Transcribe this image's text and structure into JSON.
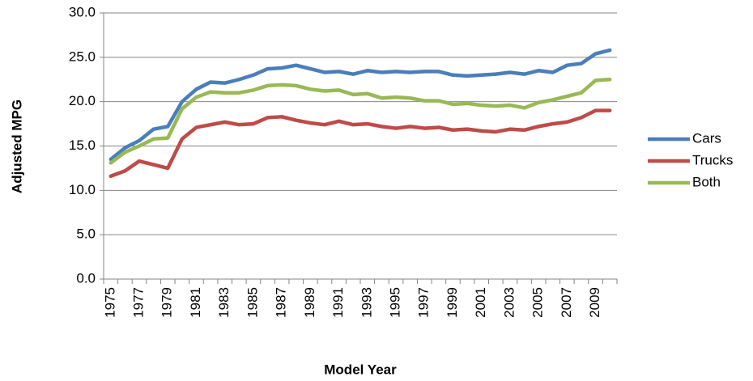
{
  "chart_data": {
    "type": "line",
    "y_label": "Adjusted MPG",
    "x_label": "Model Year",
    "categories": [
      "1975",
      null,
      "1977",
      null,
      "1979",
      null,
      "1981",
      null,
      "1983",
      null,
      "1985",
      null,
      "1987",
      null,
      "1989",
      null,
      "1991",
      null,
      "1993",
      null,
      "1995",
      null,
      "1997",
      null,
      "1999",
      null,
      "2001",
      null,
      "2003",
      null,
      "2005",
      null,
      "2007",
      null,
      "2009",
      null
    ],
    "series": [
      {
        "name": "Cars",
        "color": "#4a7ebb",
        "values": [
          13.5,
          14.8,
          15.6,
          16.9,
          17.2,
          20.0,
          21.4,
          22.2,
          22.1,
          22.5,
          23.0,
          23.7,
          23.8,
          24.1,
          23.7,
          23.3,
          23.4,
          23.1,
          23.5,
          23.3,
          23.4,
          23.3,
          23.4,
          23.4,
          23.0,
          22.9,
          23.0,
          23.1,
          23.3,
          23.1,
          23.5,
          23.3,
          24.1,
          24.3,
          25.4,
          25.8
        ]
      },
      {
        "name": "Trucks",
        "color": "#be4b48",
        "values": [
          11.6,
          12.2,
          13.3,
          12.9,
          12.5,
          15.8,
          17.1,
          17.4,
          17.7,
          17.4,
          17.5,
          18.2,
          18.3,
          17.9,
          17.6,
          17.4,
          17.8,
          17.4,
          17.5,
          17.2,
          17.0,
          17.2,
          17.0,
          17.1,
          16.8,
          16.9,
          16.7,
          16.6,
          16.9,
          16.8,
          17.2,
          17.5,
          17.7,
          18.2,
          19.0,
          19.0
        ]
      },
      {
        "name": "Both",
        "color": "#98b954",
        "values": [
          13.1,
          14.3,
          15.0,
          15.8,
          15.9,
          19.2,
          20.5,
          21.1,
          21.0,
          21.0,
          21.3,
          21.8,
          21.9,
          21.8,
          21.4,
          21.2,
          21.3,
          20.8,
          20.9,
          20.4,
          20.5,
          20.4,
          20.1,
          20.1,
          19.7,
          19.8,
          19.6,
          19.5,
          19.6,
          19.3,
          19.9,
          20.2,
          20.6,
          21.0,
          22.4,
          22.5
        ]
      }
    ],
    "ylim": [
      0,
      30
    ],
    "yticks": [
      {
        "value": 0,
        "label": "0.0"
      },
      {
        "value": 5,
        "label": "5.0"
      },
      {
        "value": 10,
        "label": "10.0"
      },
      {
        "value": 15,
        "label": "15.0"
      },
      {
        "value": 20,
        "label": "20.0"
      },
      {
        "value": 25,
        "label": "25.0"
      },
      {
        "value": 30,
        "label": "30.0"
      }
    ],
    "grid": true,
    "legend": "right"
  }
}
